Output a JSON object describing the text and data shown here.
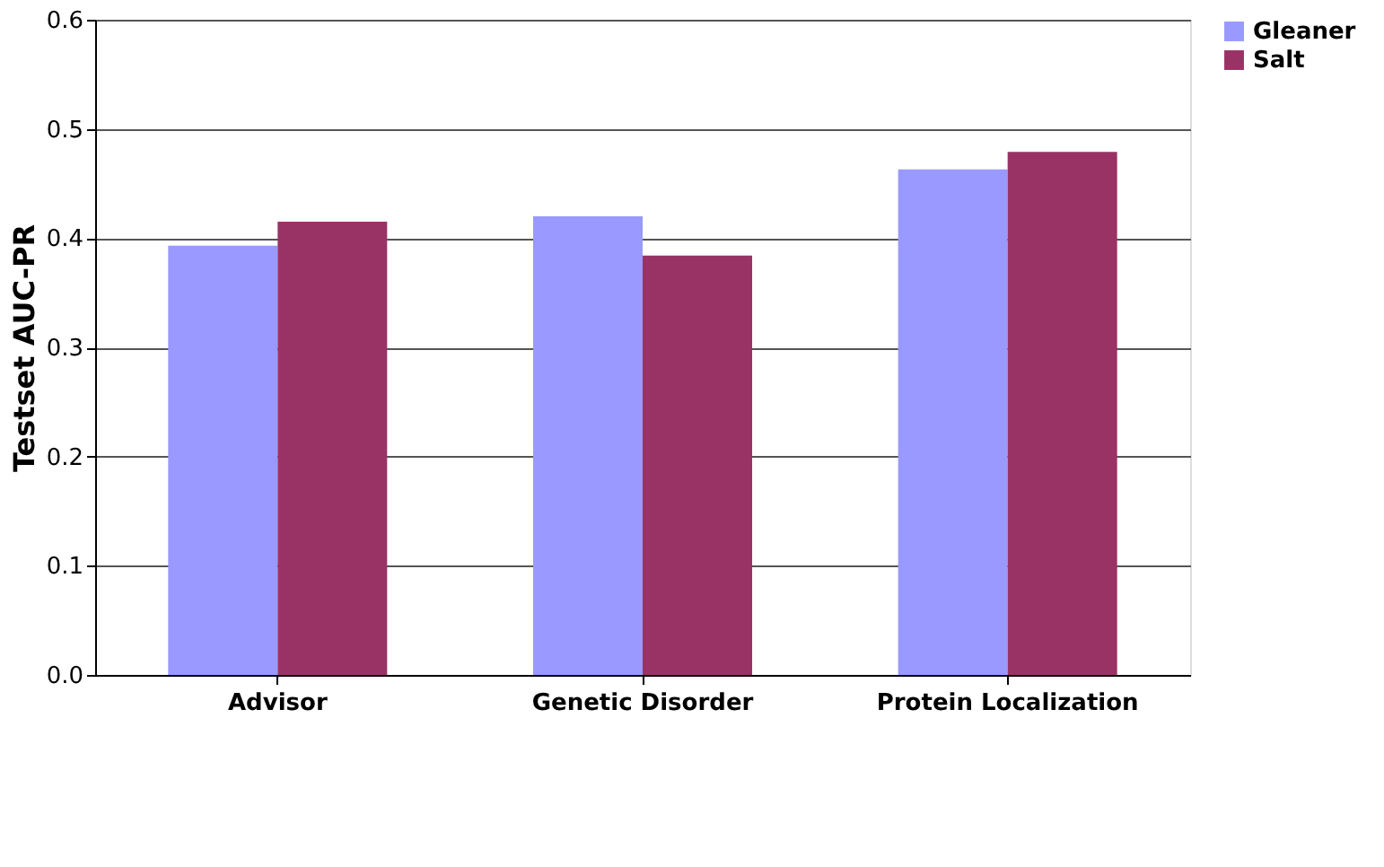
{
  "chart_data": {
    "type": "bar",
    "ylabel": "Testset AUC-PR",
    "categories": [
      "Advisor",
      "Genetic Disorder",
      "Protein Localization"
    ],
    "series": [
      {
        "name": "Gleaner",
        "color": "#9999ff",
        "values": [
          0.393,
          0.42,
          0.463
        ]
      },
      {
        "name": "Salt",
        "color": "#993366",
        "values": [
          0.415,
          0.384,
          0.479
        ]
      }
    ],
    "ylim": [
      0,
      0.6
    ],
    "yticks": [
      {
        "value": 0,
        "label": "0.0"
      },
      0.1,
      0.2,
      0.3,
      0.4,
      0.5,
      0.6
    ],
    "grid": "y",
    "legend": "right"
  }
}
